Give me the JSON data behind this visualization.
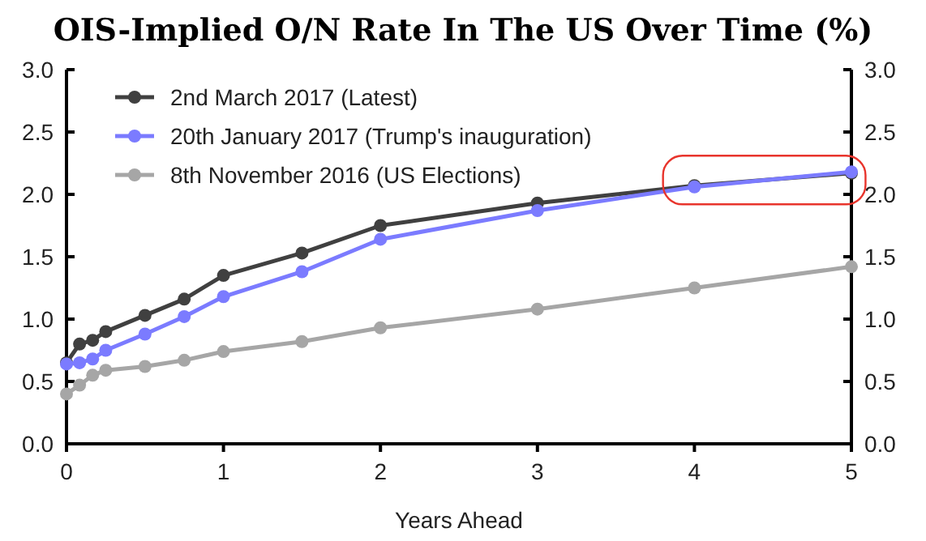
{
  "chart_data": {
    "type": "line",
    "title": "OIS-Implied O/N Rate In The US Over Time (%)",
    "xlabel": "Years Ahead",
    "x": [
      0,
      0.0833,
      0.1667,
      0.25,
      0.5,
      0.75,
      1,
      1.5,
      2,
      3,
      4,
      5
    ],
    "series": [
      {
        "name": "2nd March 2017 (Latest)",
        "color": "#404040",
        "values": [
          0.65,
          0.8,
          0.83,
          0.9,
          1.03,
          1.16,
          1.35,
          1.53,
          1.75,
          1.93,
          2.07,
          2.17
        ]
      },
      {
        "name": "20th January 2017 (Trump's inauguration)",
        "color": "#7b7bff",
        "values": [
          0.64,
          0.65,
          0.68,
          0.75,
          0.88,
          1.02,
          1.18,
          1.38,
          1.64,
          1.87,
          2.06,
          2.18
        ]
      },
      {
        "name": "8th November 2016 (US Elections)",
        "color": "#a6a6a6",
        "values": [
          0.4,
          0.47,
          0.55,
          0.59,
          0.62,
          0.67,
          0.74,
          0.82,
          0.93,
          1.08,
          1.25,
          1.42
        ]
      }
    ],
    "xlim": [
      0,
      5
    ],
    "xticks": [
      0,
      1,
      2,
      3,
      4,
      5
    ],
    "ylim": [
      0,
      3
    ],
    "yticks": [
      {
        "value": 0,
        "label": "0.0"
      },
      {
        "value": 0.5,
        "label": "0.5"
      },
      {
        "value": 1,
        "label": "1.0"
      },
      {
        "value": 1.5,
        "label": "1.5"
      },
      {
        "value": 2,
        "label": "2.0"
      },
      {
        "value": 2.5,
        "label": "2.5"
      },
      {
        "value": 3,
        "label": "3.0"
      }
    ],
    "y2lim": [
      0,
      3
    ],
    "y2ticks": [
      {
        "value": 0,
        "label": "0.0"
      },
      {
        "value": 0.5,
        "label": "0.5"
      },
      {
        "value": 1,
        "label": "1.0"
      },
      {
        "value": 1.5,
        "label": "1.5"
      },
      {
        "value": 2,
        "label": "2.0"
      },
      {
        "value": 2.5,
        "label": "2.5"
      },
      {
        "value": 3,
        "label": "3.0"
      }
    ],
    "legend": "top left",
    "marker": "circle",
    "line_style": "solid",
    "grid": false
  }
}
